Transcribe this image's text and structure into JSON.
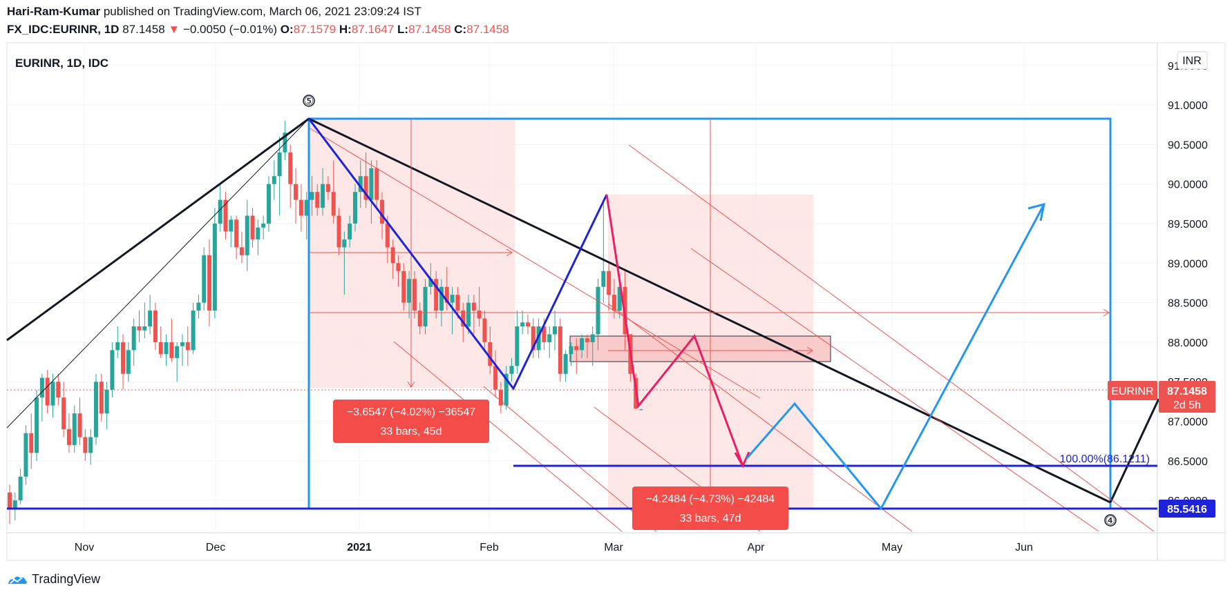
{
  "header": {
    "author": "Hari-Ram-Kumar",
    "published": "published on TradingView.com, March 06, 2021 23:09:24 IST",
    "symbol": "FX_IDC:EURINR, 1D",
    "last": "87.1458",
    "arrow": "▼",
    "change": "−0.0050 (−0.01%)",
    "o_label": "O:",
    "o": "87.1579",
    "h_label": "H:",
    "h": "87.1647",
    "l_label": "L:",
    "l": "87.1458",
    "c_label": "C:",
    "c": "87.1458"
  },
  "footer": {
    "brand": "TradingView",
    "icon": "tradingview-logo-icon"
  },
  "chart_data": {
    "type": "candlestick",
    "title": "EURINR, 1D, IDC",
    "currency": "INR",
    "ylim": [
      85.3,
      91.6
    ],
    "x_ticks": [
      "Nov",
      "Dec",
      "2021",
      "Feb",
      "Mar",
      "Apr",
      "May",
      "Jun"
    ],
    "y_ticks": [
      "91.5000",
      "91.0000",
      "90.5000",
      "90.0000",
      "89.5000",
      "89.0000",
      "88.5000",
      "88.0000",
      "87.5000",
      "87.0000",
      "86.5000",
      "86.0000"
    ],
    "price_badges": [
      {
        "name": "EURINR",
        "value": "87.1458",
        "sub": "2d 5h",
        "color": "#ef5350"
      },
      {
        "value": "85.5416",
        "color": "#1e22dc"
      }
    ],
    "fib_label": "100.00%(86.1211)",
    "wave_labels": [
      "⑤",
      "④"
    ],
    "measurements": [
      {
        "line1": "−3.6547 (−4.02%) −36547",
        "line2": "33 bars, 45d"
      },
      {
        "line1": "−4.2484 (−4.73%) −42484",
        "line2": "33 bars, 47d"
      }
    ],
    "ohlc": [
      [
        86.1,
        86.2,
        85.7,
        85.9
      ],
      [
        85.9,
        86.1,
        85.75,
        86.0
      ],
      [
        86.0,
        86.4,
        85.95,
        86.3
      ],
      [
        86.3,
        86.95,
        86.2,
        86.85
      ],
      [
        86.85,
        87.1,
        86.4,
        86.6
      ],
      [
        86.6,
        87.4,
        86.5,
        87.3
      ],
      [
        87.3,
        87.6,
        87.0,
        87.55
      ],
      [
        87.55,
        87.65,
        87.1,
        87.2
      ],
      [
        87.2,
        87.6,
        87.05,
        87.5
      ],
      [
        87.5,
        87.6,
        87.2,
        87.3
      ],
      [
        87.3,
        87.5,
        86.8,
        86.9
      ],
      [
        86.9,
        87.1,
        86.6,
        86.7
      ],
      [
        86.7,
        87.2,
        86.6,
        87.1
      ],
      [
        87.1,
        87.3,
        86.7,
        86.8
      ],
      [
        86.8,
        86.9,
        86.5,
        86.6
      ],
      [
        86.6,
        86.9,
        86.45,
        86.8
      ],
      [
        86.8,
        87.6,
        86.7,
        87.5
      ],
      [
        87.5,
        87.6,
        87.0,
        87.1
      ],
      [
        87.1,
        87.5,
        86.9,
        87.4
      ],
      [
        87.4,
        88.0,
        87.3,
        87.9
      ],
      [
        87.9,
        88.2,
        87.8,
        88.0
      ],
      [
        88.0,
        88.1,
        87.4,
        87.6
      ],
      [
        87.6,
        88.0,
        87.5,
        87.9
      ],
      [
        87.9,
        88.3,
        87.7,
        88.2
      ],
      [
        88.2,
        88.4,
        88.0,
        88.15
      ],
      [
        88.15,
        88.5,
        88.05,
        88.2
      ],
      [
        88.2,
        88.6,
        88.1,
        88.4
      ],
      [
        88.4,
        88.5,
        87.9,
        88.0
      ],
      [
        88.0,
        88.2,
        87.8,
        87.85
      ],
      [
        87.85,
        88.1,
        87.7,
        88.0
      ],
      [
        88.0,
        88.3,
        87.75,
        87.8
      ],
      [
        87.8,
        88.0,
        87.5,
        87.95
      ],
      [
        87.95,
        88.1,
        87.7,
        88.0
      ],
      [
        88.0,
        88.2,
        87.7,
        87.9
      ],
      [
        87.9,
        88.5,
        87.85,
        88.4
      ],
      [
        88.4,
        88.6,
        88.3,
        88.5
      ],
      [
        88.5,
        89.2,
        88.4,
        89.1
      ],
      [
        89.1,
        89.3,
        88.2,
        88.4
      ],
      [
        88.4,
        89.7,
        88.3,
        89.5
      ],
      [
        89.5,
        90.0,
        89.4,
        89.8
      ],
      [
        89.8,
        89.9,
        89.3,
        89.4
      ],
      [
        89.4,
        89.6,
        89.2,
        89.55
      ],
      [
        89.55,
        89.6,
        89.05,
        89.2
      ],
      [
        89.2,
        89.4,
        89.0,
        89.1
      ],
      [
        89.1,
        89.8,
        88.9,
        89.6
      ],
      [
        89.6,
        89.7,
        89.2,
        89.3
      ],
      [
        89.3,
        89.55,
        89.1,
        89.45
      ],
      [
        89.45,
        89.6,
        89.3,
        89.5
      ],
      [
        89.5,
        90.1,
        89.4,
        90.0
      ],
      [
        90.0,
        90.3,
        89.8,
        90.1
      ],
      [
        90.1,
        90.6,
        89.6,
        90.4
      ],
      [
        90.4,
        90.8,
        90.3,
        90.65
      ],
      [
        90.4,
        90.5,
        89.7,
        90.0
      ],
      [
        90.0,
        90.2,
        89.5,
        89.8
      ],
      [
        89.8,
        90.0,
        89.4,
        89.6
      ],
      [
        89.6,
        89.9,
        89.3,
        89.8
      ],
      [
        89.8,
        90.1,
        89.6,
        89.9
      ],
      [
        89.9,
        90.0,
        89.6,
        89.7
      ],
      [
        89.7,
        90.2,
        89.6,
        90.0
      ],
      [
        90.0,
        90.1,
        89.8,
        89.9
      ],
      [
        89.9,
        90.3,
        89.5,
        89.6
      ],
      [
        89.6,
        89.7,
        89.1,
        89.2
      ],
      [
        89.2,
        89.4,
        88.6,
        89.3
      ],
      [
        89.3,
        89.6,
        89.2,
        89.5
      ],
      [
        89.5,
        90.0,
        89.4,
        89.9
      ],
      [
        89.9,
        90.3,
        89.7,
        90.1
      ],
      [
        90.1,
        90.4,
        89.7,
        89.8
      ],
      [
        89.8,
        90.3,
        89.5,
        90.2
      ],
      [
        90.2,
        90.3,
        89.7,
        89.8
      ],
      [
        89.8,
        89.9,
        89.3,
        89.5
      ],
      [
        89.5,
        89.6,
        89.0,
        89.2
      ],
      [
        89.2,
        89.3,
        88.8,
        89.0
      ],
      [
        89.0,
        89.1,
        88.7,
        88.9
      ],
      [
        88.9,
        89.0,
        88.4,
        88.5
      ],
      [
        88.5,
        88.9,
        88.3,
        88.8
      ],
      [
        88.8,
        88.9,
        88.3,
        88.4
      ],
      [
        88.4,
        88.5,
        88.1,
        88.2
      ],
      [
        88.2,
        88.8,
        88.1,
        88.7
      ],
      [
        88.7,
        89.0,
        88.6,
        88.8
      ],
      [
        88.8,
        88.9,
        88.3,
        88.4
      ],
      [
        88.4,
        88.8,
        88.2,
        88.7
      ],
      [
        88.7,
        88.95,
        88.4,
        88.5
      ],
      [
        88.5,
        88.7,
        88.1,
        88.6
      ],
      [
        88.6,
        88.7,
        88.3,
        88.4
      ],
      [
        88.4,
        88.5,
        88.0,
        88.2
      ],
      [
        88.2,
        88.6,
        88.1,
        88.5
      ],
      [
        88.5,
        88.6,
        88.1,
        88.4
      ],
      [
        88.4,
        88.7,
        88.2,
        88.3
      ],
      [
        88.3,
        88.4,
        87.9,
        88.0
      ],
      [
        88.0,
        88.2,
        87.6,
        87.7
      ],
      [
        87.7,
        87.9,
        87.3,
        87.4
      ],
      [
        87.4,
        87.5,
        87.1,
        87.2
      ],
      [
        87.2,
        87.7,
        87.15,
        87.6
      ],
      [
        87.6,
        87.8,
        87.5,
        87.7
      ],
      [
        87.7,
        88.4,
        87.6,
        88.2
      ],
      [
        88.2,
        88.4,
        88.1,
        88.25
      ],
      [
        88.25,
        88.35,
        88.1,
        88.2
      ],
      [
        88.2,
        88.3,
        87.8,
        87.9
      ],
      [
        87.9,
        88.3,
        87.8,
        88.2
      ],
      [
        88.2,
        88.3,
        87.9,
        88.0
      ],
      [
        88.0,
        88.2,
        87.8,
        88.1
      ],
      [
        88.1,
        88.4,
        87.9,
        88.2
      ],
      [
        88.2,
        88.3,
        87.5,
        87.6
      ],
      [
        87.6,
        87.9,
        87.5,
        87.85
      ],
      [
        87.85,
        88.0,
        87.7,
        87.95
      ],
      [
        87.95,
        88.05,
        87.6,
        87.9
      ],
      [
        87.9,
        88.1,
        87.8,
        88.05
      ],
      [
        88.05,
        88.1,
        87.8,
        88.0
      ],
      [
        88.0,
        88.2,
        87.7,
        88.1
      ],
      [
        88.1,
        88.8,
        87.9,
        88.7
      ],
      [
        88.7,
        89.8,
        88.5,
        88.9
      ],
      [
        88.9,
        89.0,
        88.4,
        88.6
      ],
      [
        88.6,
        88.8,
        88.3,
        88.4
      ],
      [
        88.4,
        88.8,
        88.3,
        88.7
      ],
      [
        88.7,
        88.9,
        87.9,
        88.1
      ],
      [
        88.1,
        88.1,
        87.5,
        87.6
      ],
      [
        87.55,
        87.6,
        87.15,
        87.16
      ],
      [
        87.15,
        87.16,
        87.14,
        87.15
      ]
    ]
  }
}
